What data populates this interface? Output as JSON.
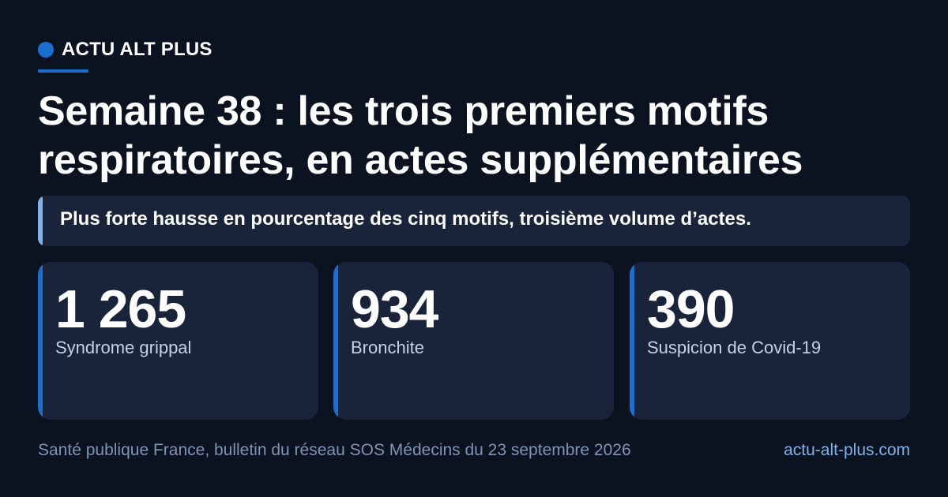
{
  "brand": {
    "label": "ACTU ALT PLUS",
    "icon": "dot-icon",
    "accent_color": "#1a6fd1"
  },
  "headline": "Semaine 38 : les trois premiers motifs respiratoires, en actes supplémentaires",
  "subtitle": "Plus forte hausse en pourcentage des cinq motifs, troisième volume d’actes.",
  "stats": [
    {
      "value": "1 265",
      "label": "Syndrome grippal"
    },
    {
      "value": "934",
      "label": "Bronchite"
    },
    {
      "value": "390",
      "label": "Suspicion de Covid-19"
    }
  ],
  "footer": {
    "source": "Santé publique France, bulletin du réseau SOS Médecins du 23 septembre 2026",
    "site": "actu-alt-plus.com"
  },
  "colors": {
    "background": "#0b1220",
    "card": "#19233a",
    "accent": "#1a6fd1",
    "accent_light": "#7fb2ea"
  }
}
